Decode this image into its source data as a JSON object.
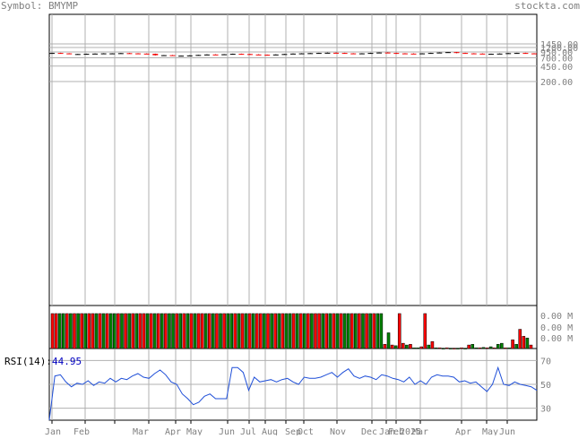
{
  "header": {
    "symbol_label": "Symbol: BMYMP",
    "site": "stockta.com"
  },
  "rsi_readout": {
    "label": "RSI(14):",
    "value": "44.95"
  },
  "colors": {
    "up": "#008000",
    "down": "#ff0000",
    "rsi_line": "#1f4fd8",
    "grid": "#b0b0b0",
    "axis_text": "#808080"
  },
  "chart_data": [
    {
      "type": "candlestick",
      "panel": "price",
      "y_scale": "log",
      "ylim": [
        200,
        1450
      ],
      "y_ticks": [
        1450,
        1200,
        950,
        700,
        450,
        200
      ],
      "y_tick_labels": [
        "1450.00",
        "1200.00",
        "950.00",
        "700.00",
        "450.00",
        "200.00"
      ],
      "x_tick_labels": [
        "Jan",
        "Feb",
        "Mar",
        "Apr",
        "May",
        "Jun",
        "Jul",
        "Aug",
        "Sep",
        "Oct",
        "Nov",
        "Dec",
        "Jan",
        "Feb",
        "2025",
        "Mar",
        "Apr",
        "May",
        "Jun"
      ],
      "close_profile": [
        900,
        880,
        850,
        850,
        860,
        870,
        880,
        880,
        890,
        880,
        870,
        860,
        800,
        800,
        780,
        780,
        790,
        810,
        830,
        820,
        840,
        860,
        850,
        830,
        820,
        810,
        830,
        850,
        870,
        880,
        890,
        900,
        910,
        900,
        880,
        870,
        880,
        900,
        920,
        900,
        880,
        870,
        860,
        880,
        900,
        920,
        940,
        900,
        880,
        870,
        860,
        860,
        870,
        890,
        900,
        880,
        860
      ]
    },
    {
      "type": "bar",
      "panel": "volume",
      "y_tick_labels": [
        "0.00 M",
        "0.00 M",
        "0.00 M"
      ],
      "volume_profile": [
        1,
        1,
        1,
        1,
        1,
        1,
        1,
        1,
        1,
        1,
        1,
        1,
        1,
        1,
        1,
        1,
        1,
        1,
        1,
        1,
        1,
        1,
        1,
        1,
        1,
        1,
        1,
        1,
        1,
        1,
        1,
        1,
        1,
        1,
        1,
        1,
        1,
        1,
        1,
        1,
        1,
        1,
        1,
        1,
        1,
        1,
        1,
        1,
        1,
        1,
        1,
        1,
        1,
        1,
        1,
        1,
        1,
        1,
        1,
        1,
        1,
        1,
        1,
        1,
        1,
        1,
        1,
        1,
        1,
        1,
        1,
        1,
        1,
        1,
        1,
        1,
        1,
        1,
        1,
        1,
        1,
        1,
        1,
        1,
        1,
        1,
        1,
        1,
        1,
        1,
        1,
        0.12,
        0.45,
        0.1,
        0.08,
        1.0,
        0.15,
        0.1,
        0.12,
        0.02,
        0.02,
        0.05,
        1.0,
        0.1,
        0.2,
        0.02,
        0.02,
        0.01,
        0.02,
        0.01,
        0.01,
        0.01,
        0.02,
        0.01,
        0.1,
        0.12,
        0.02,
        0.02,
        0.03,
        0.02,
        0.05,
        0.02,
        0.12,
        0.15,
        0.02,
        0.02,
        0.25,
        0.12,
        0.55,
        0.35,
        0.3,
        0.1
      ],
      "volume_up_flags": [
        0,
        0,
        1,
        1,
        0,
        1,
        0,
        1,
        0,
        1,
        0,
        0,
        1,
        0,
        1,
        0,
        1,
        1,
        0,
        1,
        0,
        1,
        0,
        1,
        0,
        0,
        1,
        0,
        1,
        0,
        1,
        0,
        1,
        1,
        0,
        1,
        0,
        1,
        0,
        1,
        0,
        0,
        1,
        0,
        1,
        0,
        1,
        0,
        1,
        1,
        0,
        1,
        0,
        1,
        0,
        1,
        0,
        0,
        1,
        0,
        1,
        0,
        1,
        0,
        1,
        1,
        0,
        1,
        0,
        1,
        0,
        1,
        0,
        0,
        1,
        0,
        1,
        0,
        1,
        0,
        1,
        1,
        0,
        1,
        0,
        1,
        0,
        1,
        0,
        1,
        1,
        0,
        1,
        0,
        1,
        0,
        0,
        1,
        0,
        1,
        1,
        0,
        0,
        1,
        0,
        1,
        0,
        1,
        0,
        1,
        0,
        1,
        0,
        1,
        0,
        1,
        1,
        0,
        1,
        0,
        1,
        0,
        1,
        1,
        0,
        1,
        0,
        1,
        0,
        0,
        1,
        0,
        1,
        0,
        1,
        0
      ]
    },
    {
      "type": "line",
      "panel": "rsi",
      "name": "RSI(14)",
      "ylim": [
        20,
        80
      ],
      "y_ticks": [
        70,
        50,
        30
      ],
      "last_value": 44.95,
      "values": [
        20,
        57,
        58,
        52,
        48,
        51,
        50,
        53,
        49,
        52,
        51,
        55,
        52,
        55,
        54,
        57,
        59,
        56,
        55,
        59,
        62,
        58,
        52,
        50,
        42,
        38,
        33,
        35,
        40,
        42,
        38,
        38,
        38,
        64,
        64,
        60,
        45,
        56,
        52,
        53,
        54,
        52,
        54,
        55,
        52,
        50,
        56,
        55,
        55,
        56,
        58,
        60,
        56,
        60,
        63,
        57,
        55,
        57,
        56,
        54,
        58,
        57,
        55,
        54,
        52,
        56,
        50,
        53,
        50,
        56,
        58,
        57,
        57,
        56,
        52,
        53,
        51,
        52,
        48,
        44,
        50,
        64,
        50,
        49,
        52,
        50,
        49,
        48,
        45
      ]
    }
  ]
}
